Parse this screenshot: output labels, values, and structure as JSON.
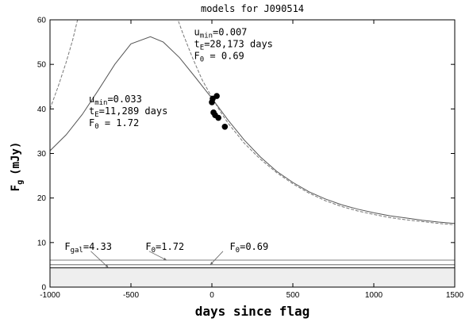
{
  "chart_data": {
    "type": "line",
    "title": "models for J090514",
    "xlabel": "days since flag",
    "ylabel": {
      "main": "F",
      "sub": "g",
      "unit": "(mJy)"
    },
    "xlim": [
      -1000,
      1500
    ],
    "ylim": [
      0,
      60
    ],
    "x_ticks": [
      -1000,
      -500,
      0,
      500,
      1000,
      1500
    ],
    "y_ticks": [
      0,
      10,
      20,
      30,
      40,
      50,
      60
    ],
    "x_tick_labels": [
      "-1000",
      "-500",
      "0",
      "500",
      "1000",
      "1500"
    ],
    "y_tick_labels": [
      "0",
      "10",
      "20",
      "30",
      "40",
      "50",
      "60"
    ],
    "grid": false,
    "series": [
      {
        "style": "solid",
        "u_min": 0.033,
        "t_E": 11289,
        "F_0": 1.72,
        "t_peak": -380,
        "points": [
          [
            -1000,
            30.6
          ],
          [
            -900,
            34.2
          ],
          [
            -800,
            38.8
          ],
          [
            -700,
            44.3
          ],
          [
            -600,
            50.0
          ],
          [
            -500,
            54.6
          ],
          [
            -380,
            56.2
          ],
          [
            -300,
            55.0
          ],
          [
            -200,
            51.5
          ],
          [
            -100,
            47.0
          ],
          [
            0,
            42.4
          ],
          [
            100,
            37.5
          ],
          [
            200,
            33.0
          ],
          [
            300,
            29.2
          ],
          [
            400,
            26.0
          ],
          [
            500,
            23.5
          ],
          [
            600,
            21.4
          ],
          [
            700,
            19.8
          ],
          [
            800,
            18.5
          ],
          [
            900,
            17.5
          ],
          [
            1000,
            16.7
          ],
          [
            1100,
            16.0
          ],
          [
            1200,
            15.5
          ],
          [
            1300,
            15.0
          ],
          [
            1400,
            14.6
          ],
          [
            1500,
            14.3
          ]
        ]
      },
      {
        "style": "dashed",
        "u_min": 0.007,
        "t_E": 28173,
        "F_0": 0.69,
        "points": [
          [
            -1000,
            40.0
          ],
          [
            -950,
            45.0
          ],
          [
            -900,
            50.5
          ],
          [
            -860,
            55.5
          ],
          [
            -830,
            60.0
          ],
          [
            -210,
            60.0
          ],
          [
            -180,
            57.0
          ],
          [
            -120,
            51.5
          ],
          [
            -60,
            46.5
          ],
          [
            0,
            42.6
          ],
          [
            50,
            39.5
          ],
          [
            100,
            36.8
          ],
          [
            200,
            32.3
          ],
          [
            300,
            28.7
          ],
          [
            400,
            25.7
          ],
          [
            500,
            23.2
          ],
          [
            600,
            21.1
          ],
          [
            700,
            19.4
          ],
          [
            800,
            18.1
          ],
          [
            900,
            17.1
          ],
          [
            1000,
            16.3
          ],
          [
            1100,
            15.6
          ],
          [
            1200,
            15.1
          ],
          [
            1300,
            14.7
          ],
          [
            1400,
            14.3
          ],
          [
            1500,
            14.0
          ]
        ]
      }
    ],
    "observations": [
      [
        0,
        41.5
      ],
      [
        5,
        42.3
      ],
      [
        10,
        39.2
      ],
      [
        20,
        38.6
      ],
      [
        30,
        42.9
      ],
      [
        40,
        38.0
      ],
      [
        80,
        36.0
      ]
    ],
    "horizontal_levels": [
      {
        "y": 4.33,
        "label": "F_gal=4.33",
        "filled": true
      },
      {
        "y": 6.05,
        "label": "F_0=1.72"
      },
      {
        "y": 5.02,
        "label": "F_0=0.69"
      }
    ],
    "annotations": [
      {
        "lines": [
          [
            "u",
            "min",
            "=0.007"
          ],
          [
            "t",
            "E",
            "=28,173 days"
          ],
          [
            "F",
            "0",
            " = 0.69"
          ]
        ],
        "at": [
          -110,
          56.5
        ]
      },
      {
        "lines": [
          [
            "u",
            "min",
            "=0.033"
          ],
          [
            "t",
            "E",
            "=11,289 days"
          ],
          [
            "F",
            "0",
            " = 1.72"
          ]
        ],
        "at": [
          -760,
          41.5
        ]
      }
    ],
    "level_labels": [
      {
        "parts": [
          "F",
          "gal",
          "=4.33"
        ],
        "at": [
          -910,
          8.4
        ],
        "arrow_to": [
          -640,
          4.4
        ]
      },
      {
        "parts": [
          "F",
          "0",
          "=1.72"
        ],
        "at": [
          -410,
          8.4
        ],
        "arrow_to": [
          -280,
          6.05
        ]
      },
      {
        "parts": [
          "F",
          "0",
          "=0.69"
        ],
        "at": [
          110,
          8.4
        ],
        "arrow_to": [
          -10,
          5.02
        ]
      }
    ],
    "colors": {
      "line": "#555555",
      "dashed": "#777777",
      "fill": "#eeeeee",
      "points": "#000000"
    }
  }
}
